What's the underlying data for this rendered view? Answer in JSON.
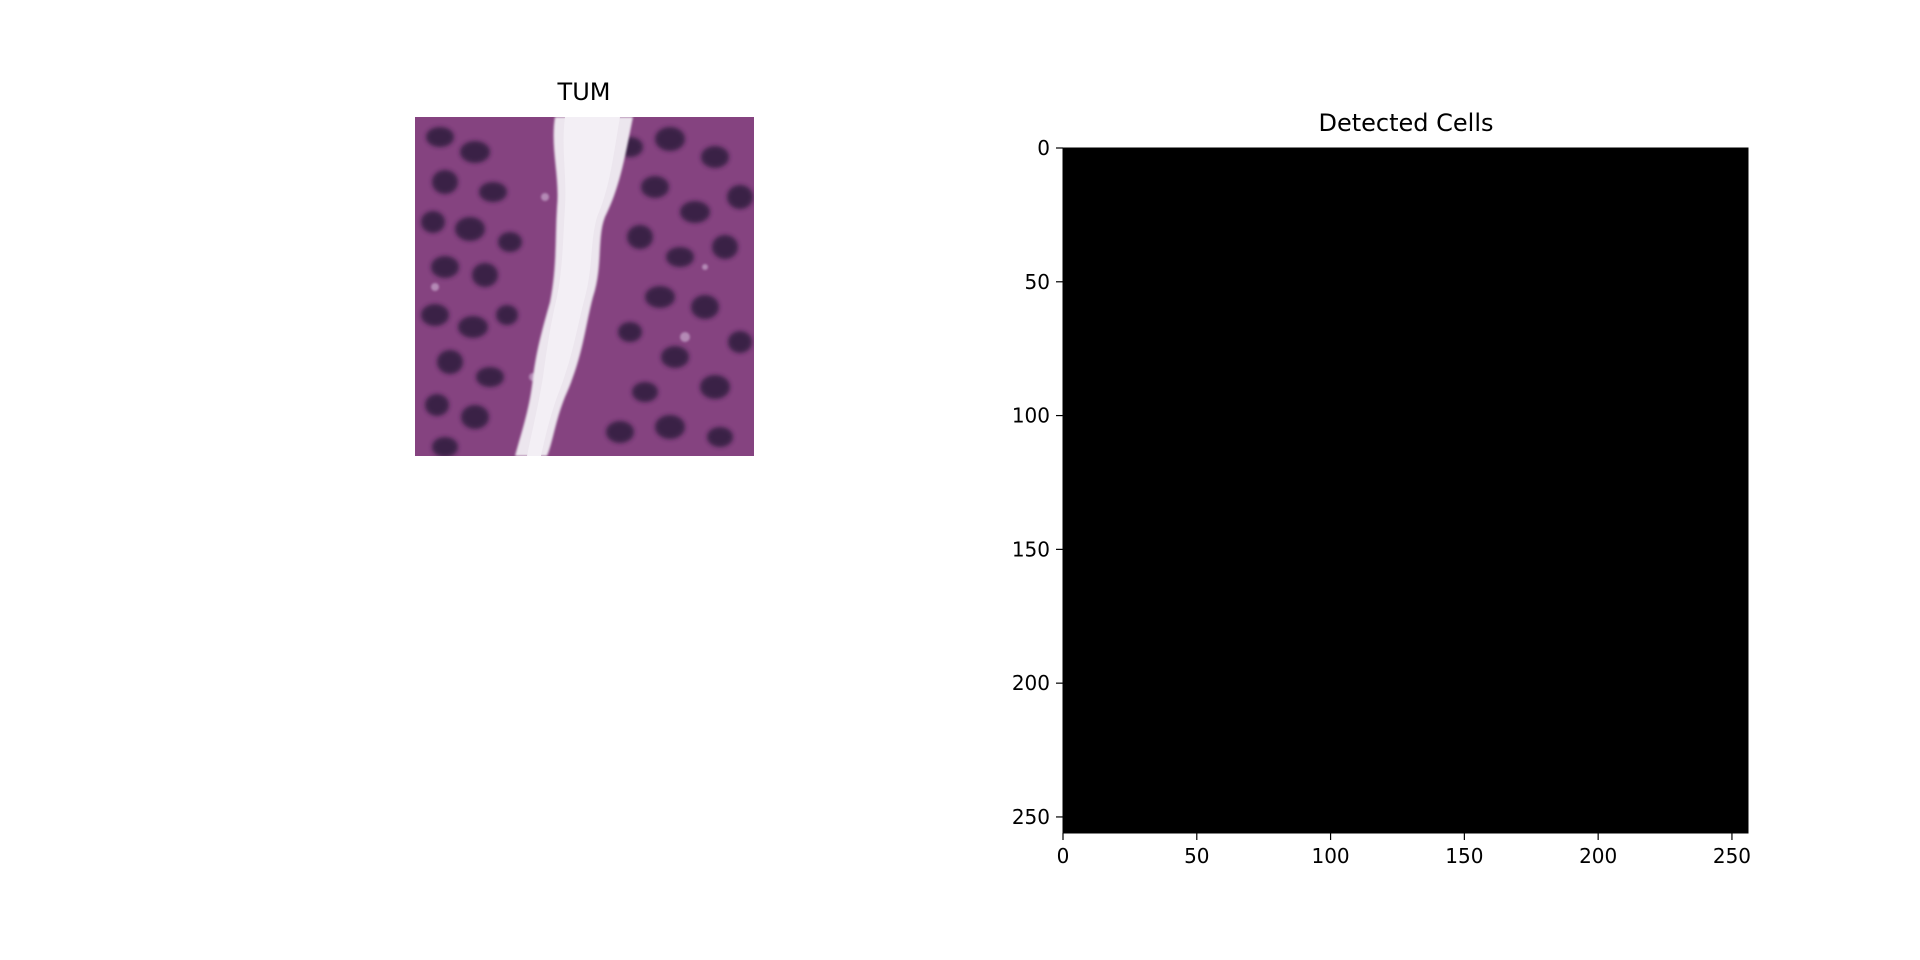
{
  "panels": {
    "left": {
      "title": "TUM"
    },
    "right": {
      "title": "Detected Cells"
    }
  },
  "chart_data": [
    {
      "type": "image",
      "title": "TUM",
      "content": "histology tissue patch (purple stained, white lumen gap)",
      "axes_visible": false
    },
    {
      "type": "heatmap",
      "title": "Detected Cells",
      "image_size": [
        256,
        256
      ],
      "values": "all zero",
      "fill_color": "#000000",
      "xlim": [
        0,
        256
      ],
      "ylim": [
        256,
        0
      ],
      "xticks": [
        0,
        50,
        100,
        150,
        200,
        250
      ],
      "yticks": [
        0,
        50,
        100,
        150,
        200,
        250
      ],
      "grid": false
    }
  ],
  "colors": {
    "background": "#ffffff",
    "tissue_stain": "#7a3a78",
    "lumen": "#ece6ee",
    "nuclei": "#2e1a3e"
  }
}
